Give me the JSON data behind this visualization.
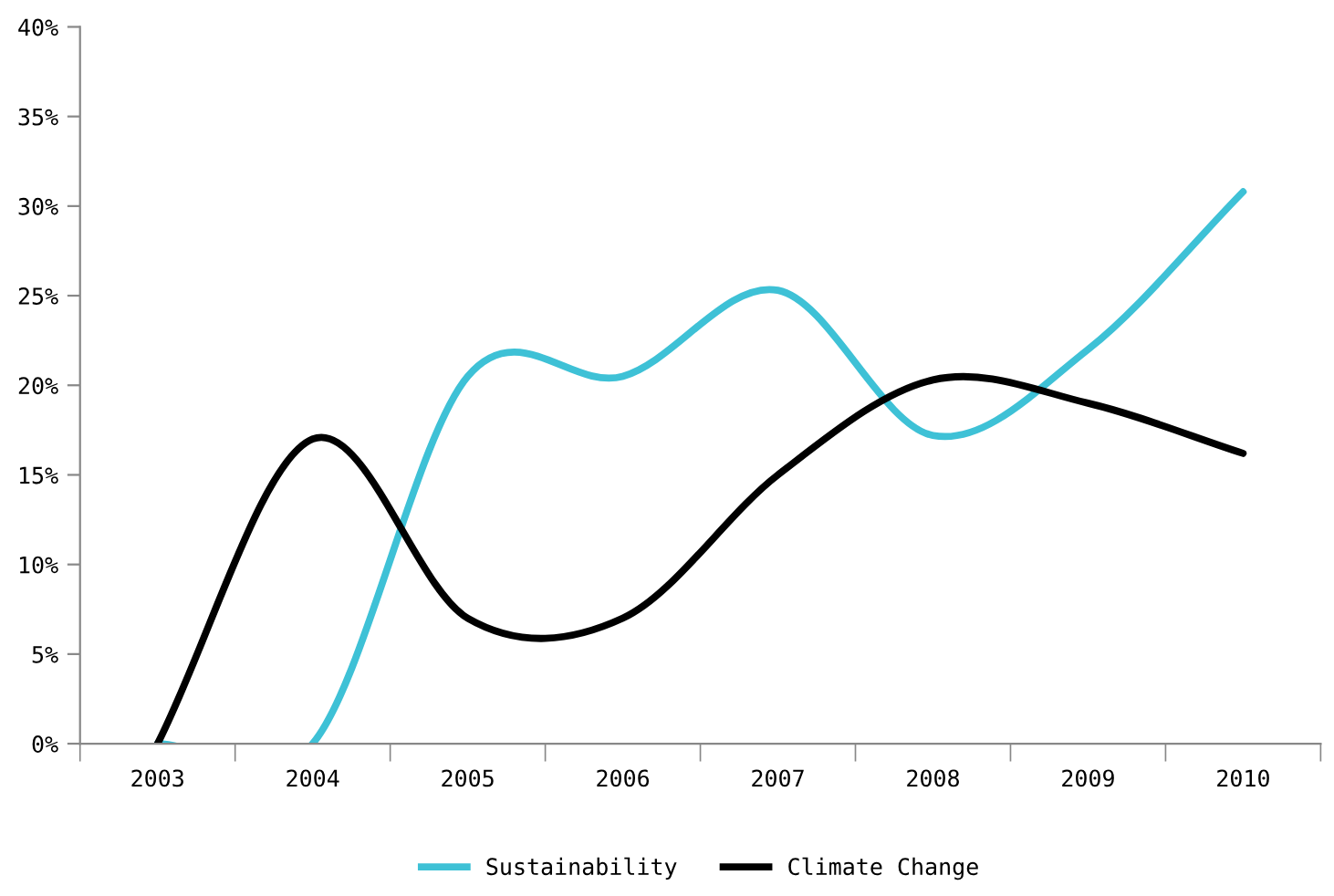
{
  "chart_data": {
    "type": "line",
    "categories": [
      "2003",
      "2004",
      "2005",
      "2006",
      "2007",
      "2008",
      "2009",
      "2010"
    ],
    "series": [
      {
        "name": "Sustainability",
        "color": "#3ec1d6",
        "values": [
          0,
          0,
          20.5,
          20.5,
          25.3,
          17.2,
          22,
          30.8
        ]
      },
      {
        "name": "Climate Change",
        "color": "#000000",
        "values": [
          0,
          17,
          7,
          7,
          15,
          20.3,
          19,
          16.2
        ]
      }
    ],
    "ylim": [
      0,
      40
    ],
    "yticks": [
      {
        "value": 0,
        "label": "0%"
      },
      {
        "value": 5,
        "label": "5%"
      },
      {
        "value": 10,
        "label": "10%"
      },
      {
        "value": 15,
        "label": "15%"
      },
      {
        "value": 20,
        "label": "20%"
      },
      {
        "value": 25,
        "label": "25%"
      },
      {
        "value": 30,
        "label": "30%"
      },
      {
        "value": 35,
        "label": "35%"
      },
      {
        "value": 40,
        "label": "40%"
      }
    ],
    "grid": false,
    "legend": "bottom",
    "marker": "none",
    "line_style": "solid"
  }
}
